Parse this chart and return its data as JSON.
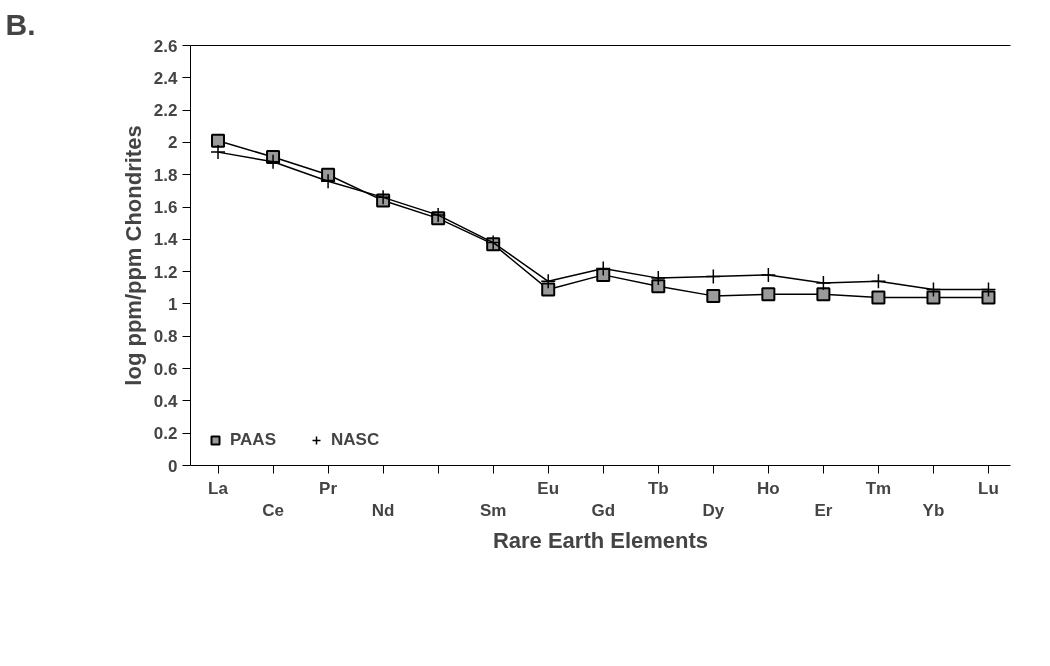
{
  "chart_data": {
    "type": "line",
    "title": "B.",
    "xlabel": "Rare Earth Elements",
    "ylabel": "log ppm/ppm Chondrites",
    "categories": [
      "La",
      "Ce",
      "Pr",
      "Nd",
      null,
      "Sm",
      "Eu",
      "Gd",
      "Tb",
      "Dy",
      "Ho",
      "Er",
      "Tm",
      "Yb",
      "Lu"
    ],
    "series": [
      {
        "name": "PAAS",
        "color": "#000000",
        "marker": "square",
        "values": [
          2.01,
          1.91,
          1.8,
          1.64,
          1.53,
          1.37,
          1.09,
          1.18,
          1.11,
          1.05,
          1.06,
          1.06,
          1.04,
          1.04,
          1.04
        ]
      },
      {
        "name": "NASC",
        "color": "#000000",
        "marker": "cross",
        "values": [
          1.94,
          1.88,
          1.76,
          1.66,
          1.55,
          1.38,
          1.14,
          1.22,
          1.16,
          1.17,
          1.18,
          1.13,
          1.14,
          1.09,
          1.09
        ]
      }
    ],
    "ylim": [
      0,
      2.6
    ],
    "yticks": [
      0,
      0.2,
      0.4,
      0.6,
      0.8,
      1,
      1.2,
      1.4,
      1.6,
      1.8,
      2,
      2.2,
      2.4,
      2.6
    ],
    "grid": false,
    "legend": "bottom left",
    "line_style": "solid"
  }
}
